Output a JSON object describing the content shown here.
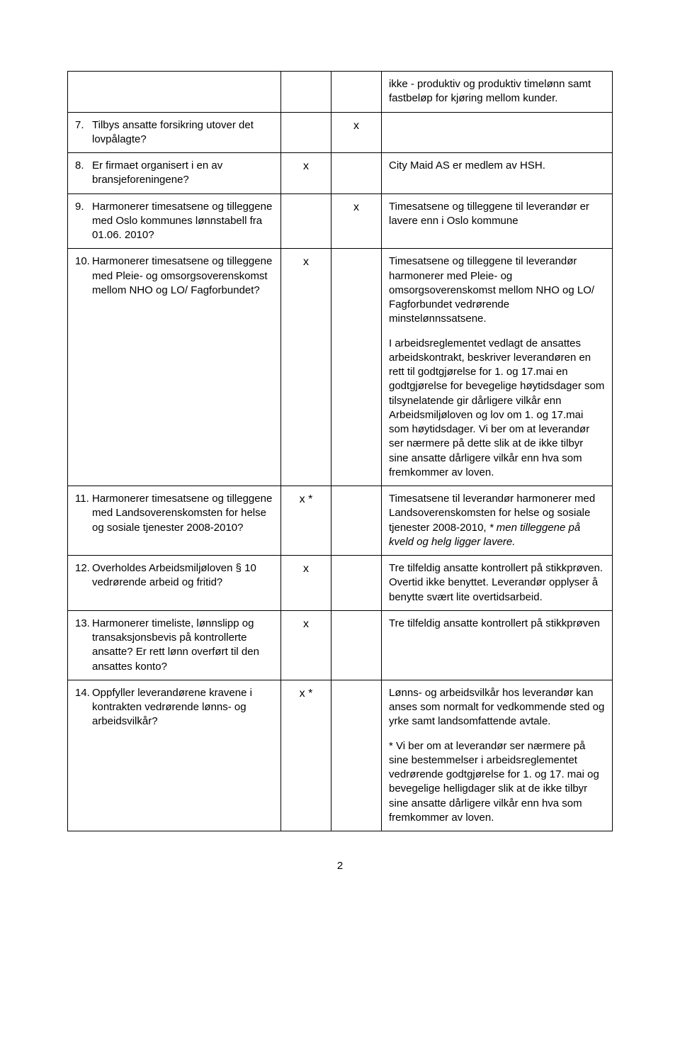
{
  "rows": [
    {
      "num": "",
      "question": "",
      "col1": "",
      "col2": "",
      "comment_paras": [
        {
          "text": "ikke - produktiv og produktiv timelønn samt fastbeløp for kjøring mellom kunder."
        }
      ]
    },
    {
      "num": "7.",
      "question": "Tilbys ansatte forsikring utover det lovpålagte?",
      "col1": "",
      "col2": "x",
      "comment_paras": []
    },
    {
      "num": "8.",
      "question": "Er firmaet organisert i en av bransjeforeningene?",
      "col1": "x",
      "col2": "",
      "comment_paras": [
        {
          "text": "City Maid AS er medlem av HSH."
        }
      ]
    },
    {
      "num": "9.",
      "question": "Harmonerer timesatsene og tilleggene med Oslo kommunes lønnstabell fra 01.06. 2010?",
      "col1": "",
      "col2": "x",
      "comment_paras": [
        {
          "text": "Timesatsene og tilleggene til leverandør er lavere enn i Oslo kommune"
        }
      ]
    },
    {
      "num": "10.",
      "question": "Harmonerer timesatsene og tilleggene med Pleie- og omsorgsoverenskomst mellom NHO og LO/ Fagforbundet?",
      "col1": "x",
      "col2": "",
      "comment_paras": [
        {
          "text": "Timesatsene og tilleggene til leverandør harmonerer med Pleie- og omsorgsoverenskomst mellom NHO og LO/ Fagforbundet vedrørende minstelønnssatsene."
        },
        {
          "text": "I arbeidsreglementet vedlagt de ansattes arbeidskontrakt, beskriver leverandøren en rett til godtgjørelse for 1. og 17.mai en godtgjørelse for bevegelige høytidsdager som tilsynelatende gir dårligere vilkår enn Arbeidsmiljøloven og lov om 1. og 17.mai som høytidsdager. Vi ber om at leverandør ser nærmere på dette slik at de ikke tilbyr sine ansatte dårligere vilkår enn hva som fremkommer av loven."
        }
      ]
    },
    {
      "num": "11.",
      "question": "Harmonerer timesatsene og tilleggene med Landsoverenskomsten for helse og sosiale tjenester 2008-2010?",
      "col1": "x *",
      "col2": "",
      "comment_paras": [
        {
          "text": "Timesatsene til leverandør harmonerer med Landsoverenskomsten for helse og sosiale tjenester 2008-2010, ",
          "tail_italic": "* men tilleggene på kveld og helg ligger lavere."
        }
      ]
    },
    {
      "num": "12.",
      "question": "Overholdes Arbeidsmiljøloven § 10 vedrørende arbeid og fritid?",
      "col1": "x",
      "col2": "",
      "comment_paras": [
        {
          "text": "Tre tilfeldig ansatte kontrollert på stikkprøven. Overtid ikke benyttet. Leverandør opplyser å benytte svært lite overtidsarbeid."
        }
      ]
    },
    {
      "num": "13.",
      "question": "Harmonerer timeliste, lønnslipp og transaksjonsbevis på kontrollerte ansatte? Er rett lønn overført til den ansattes konto?",
      "col1": "x",
      "col2": "",
      "comment_paras": [
        {
          "text": "Tre tilfeldig ansatte kontrollert på stikkprøven"
        }
      ]
    },
    {
      "num": "14.",
      "question": "Oppfyller leverandørene kravene i kontrakten vedrørende lønns- og arbeidsvilkår?",
      "col1": "x *",
      "col2": "",
      "comment_paras": [
        {
          "text": "Lønns- og arbeidsvilkår hos leverandør kan anses som normalt for vedkommende sted og yrke samt landsomfattende avtale."
        },
        {
          "text": "* Vi ber om at leverandør ser nærmere på sine bestemmelser i arbeidsreglementet vedrørende godtgjørelse for 1. og 17. mai og bevegelige helligdager slik at de ikke tilbyr sine ansatte dårligere vilkår enn hva som fremkommer av loven."
        }
      ]
    }
  ],
  "page_number": "2"
}
